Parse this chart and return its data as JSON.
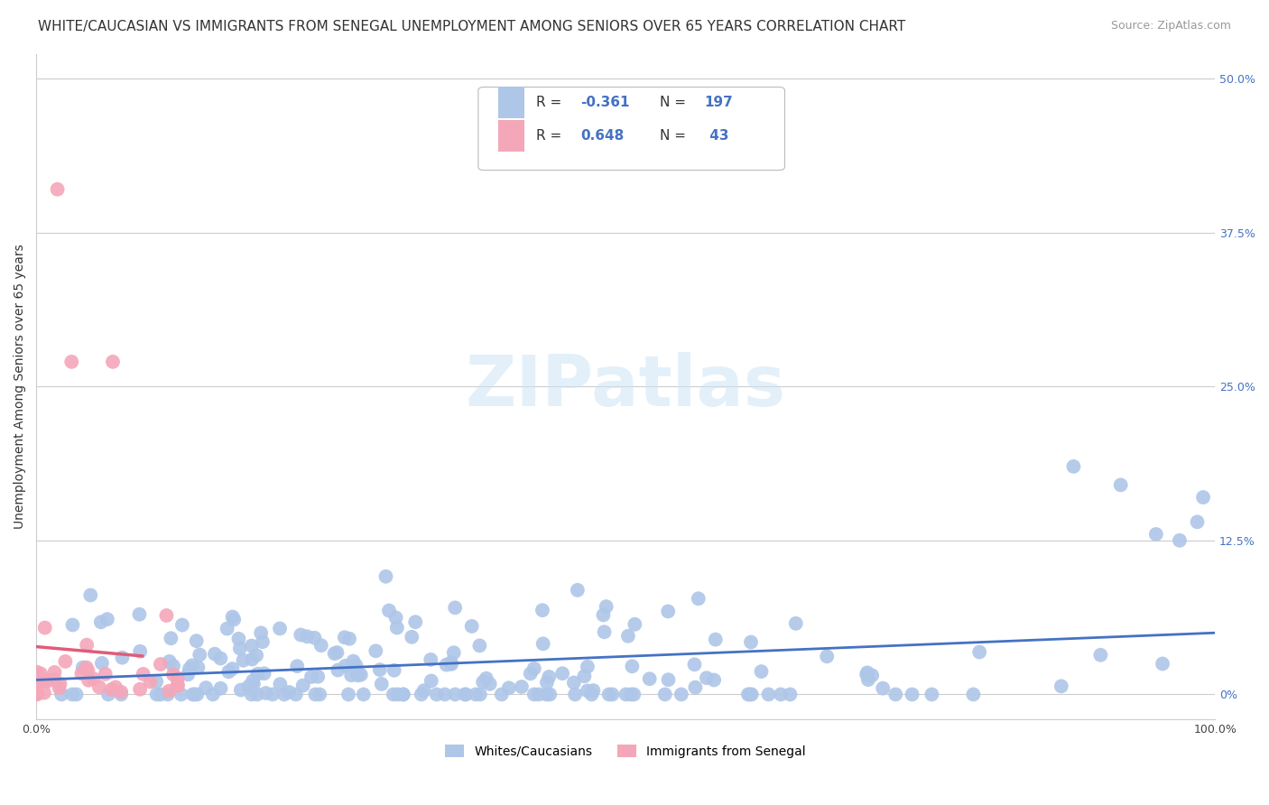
{
  "title": "WHITE/CAUCASIAN VS IMMIGRANTS FROM SENEGAL UNEMPLOYMENT AMONG SENIORS OVER 65 YEARS CORRELATION CHART",
  "source": "Source: ZipAtlas.com",
  "ylabel": "Unemployment Among Seniors over 65 years",
  "y_tick_labels": [
    "0%",
    "12.5%",
    "25.0%",
    "37.5%",
    "50.0%"
  ],
  "y_tick_values": [
    0,
    0.125,
    0.25,
    0.375,
    0.5
  ],
  "xlim": [
    0,
    1.0
  ],
  "ylim": [
    -0.02,
    0.52
  ],
  "legend_labels": [
    "Whites/Caucasians",
    "Immigrants from Senegal"
  ],
  "blue_color": "#aec6e8",
  "pink_color": "#f4a7b9",
  "blue_line_color": "#4472c4",
  "pink_line_color": "#e05c7a",
  "R_blue": -0.361,
  "N_blue": 197,
  "R_pink": 0.648,
  "N_pink": 43,
  "watermark": "ZIPatlas",
  "background_color": "#ffffff",
  "grid_color": "#cccccc",
  "title_fontsize": 11,
  "source_fontsize": 9,
  "axis_label_fontsize": 10,
  "tick_fontsize": 9,
  "legend_fontsize": 10,
  "seed": 42
}
